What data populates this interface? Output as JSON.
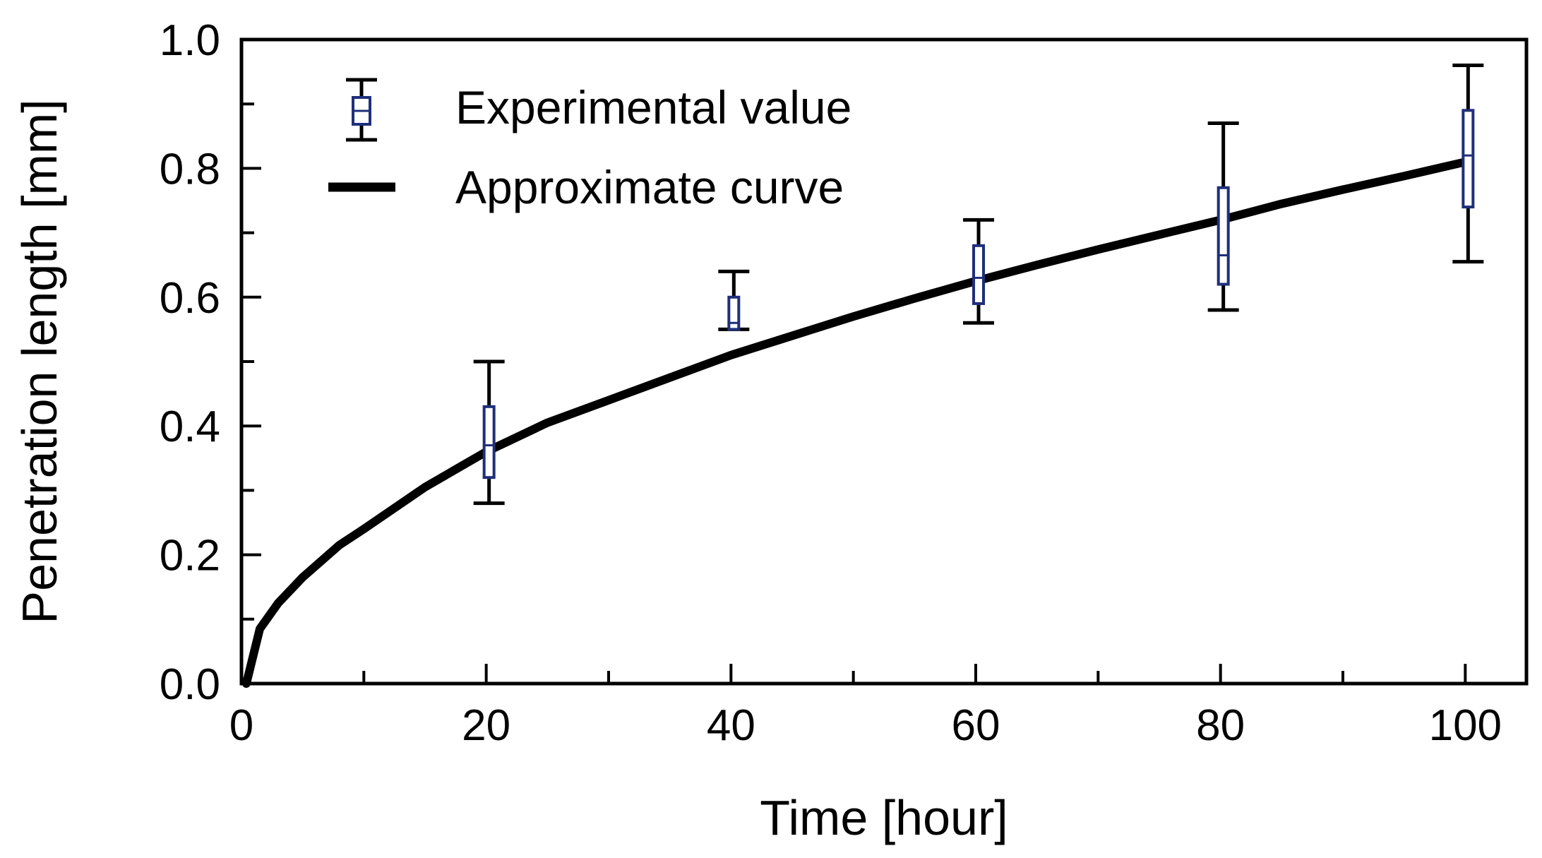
{
  "chart_data": {
    "type": "box-errorbar-with-curve",
    "title": "",
    "xlabel": "Time [hour]",
    "ylabel": "Penetration length [mm]",
    "xlim": [
      0,
      105
    ],
    "ylim": [
      0,
      1.0
    ],
    "x_major_ticks": [
      0,
      20,
      40,
      60,
      80,
      100
    ],
    "x_tick_labels": [
      "0",
      "20",
      "40",
      "60",
      "80",
      "100"
    ],
    "x_minor_ticks": [
      10,
      30,
      50,
      70,
      90
    ],
    "y_major_ticks": [
      0.0,
      0.2,
      0.4,
      0.6,
      0.8,
      1.0
    ],
    "y_tick_labels": [
      "0.0",
      "0.2",
      "0.4",
      "0.6",
      "0.8",
      "1.0"
    ],
    "y_minor_ticks": [
      0.1,
      0.3,
      0.5,
      0.7,
      0.9
    ],
    "grid": false,
    "legend": {
      "placement": "top-left",
      "entries": [
        {
          "label": "Experimental value",
          "marker": "box-with-whiskers"
        },
        {
          "label": "Approximate curve",
          "marker": "thick-line"
        }
      ]
    },
    "series": [
      {
        "name": "Experimental value",
        "kind": "box",
        "color": "#1f2f7a",
        "whisker_color": "#000000",
        "points": [
          {
            "x": 20,
            "min": 0.28,
            "q1": 0.32,
            "median": 0.37,
            "q3": 0.43,
            "max": 0.5
          },
          {
            "x": 40,
            "min": 0.55,
            "q1": 0.55,
            "median": 0.56,
            "q3": 0.6,
            "max": 0.64
          },
          {
            "x": 60,
            "min": 0.56,
            "q1": 0.59,
            "median": 0.63,
            "q3": 0.68,
            "max": 0.72
          },
          {
            "x": 80,
            "min": 0.58,
            "q1": 0.62,
            "median": 0.665,
            "q3": 0.77,
            "max": 0.87
          },
          {
            "x": 100,
            "min": 0.655,
            "q1": 0.74,
            "median": 0.82,
            "q3": 0.89,
            "max": 0.96
          }
        ]
      },
      {
        "name": "Approximate curve",
        "kind": "line",
        "color": "#000000",
        "x": [
          0.4,
          1.5,
          3,
          5,
          8,
          10,
          15,
          20,
          25,
          30,
          35,
          40,
          45,
          50,
          55,
          60,
          65,
          70,
          75,
          80,
          85,
          90,
          95,
          100
        ],
        "y": [
          0.0,
          0.085,
          0.125,
          0.165,
          0.215,
          0.24,
          0.305,
          0.36,
          0.405,
          0.44,
          0.475,
          0.51,
          0.54,
          0.57,
          0.598,
          0.625,
          0.65,
          0.674,
          0.697,
          0.72,
          0.745,
          0.767,
          0.788,
          0.81
        ]
      }
    ]
  }
}
